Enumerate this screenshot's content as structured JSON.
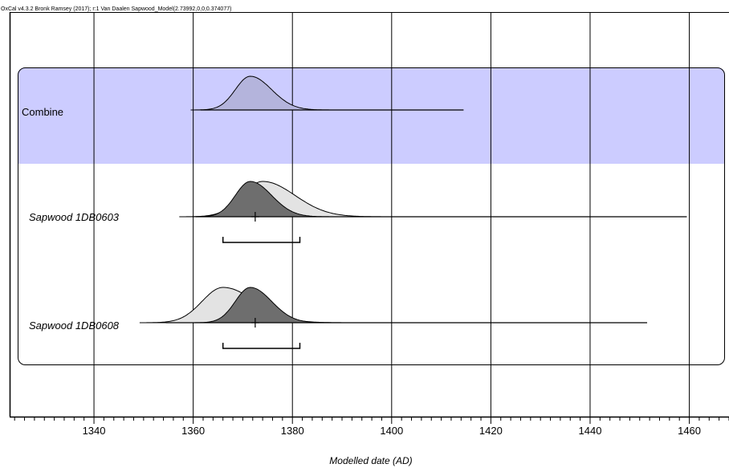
{
  "header": {
    "text": "OxCal v4.3.2 Bronk Ramsey (2017); r:1 Van Daalen Sapwood_Model(2.73992,0,0,0.374077)"
  },
  "chart_data": {
    "type": "area",
    "xlabel": "Modelled date (AD)",
    "xlim": [
      1323,
      1468
    ],
    "x_ticks": [
      1340,
      1360,
      1380,
      1400,
      1420,
      1440,
      1460
    ],
    "x_minor_step": 2,
    "grid": true,
    "colors": {
      "group_fill": "#ccccff",
      "combine_fill": "#b4b4dc",
      "prior_fill": "#e3e3e3",
      "posterior_fill": "#6e6e6e",
      "line": "#000000"
    },
    "group": {
      "label": "Combine",
      "distribution": {
        "mode": 1371.5,
        "sigma_left": 3.0,
        "sigma_right": 4.3,
        "line_from": 1361.5,
        "line_to": 1414.5
      }
    },
    "rows": [
      {
        "label": "Sapwood 1DB0603",
        "prior": {
          "mode": 1374,
          "sigma_left": 4.2,
          "sigma_right": 6.5
        },
        "posterior": {
          "mode": 1371.5,
          "sigma_left": 3.0,
          "sigma_right": 4.3
        },
        "line_from": 1360.5,
        "line_to": 1459.5,
        "mean": 1372.5,
        "range_95": [
          1366,
          1381.5
        ]
      },
      {
        "label": "Sapwood 1DB0608",
        "prior": {
          "mode": 1366,
          "sigma_left": 4.2,
          "sigma_right": 6.5
        },
        "posterior": {
          "mode": 1371.5,
          "sigma_left": 3.0,
          "sigma_right": 4.3
        },
        "line_from": 1354.5,
        "line_to": 1451.5,
        "mean": 1372.5,
        "range_95": [
          1366,
          1381.5
        ]
      }
    ]
  }
}
